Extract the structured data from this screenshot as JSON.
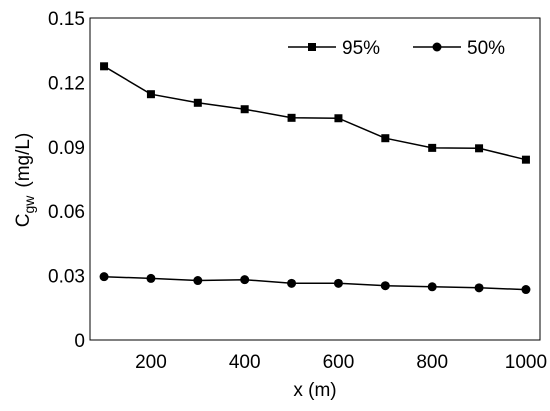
{
  "chart_data": {
    "type": "line",
    "xlabel": "x (m)",
    "ylabel": {
      "main": "C",
      "sub": "gw",
      "unit": "(mg/L)"
    },
    "xlim": [
      70,
      1030
    ],
    "ylim": [
      0,
      0.15
    ],
    "xticks": [
      200,
      400,
      600,
      800,
      1000
    ],
    "yticks": [
      0,
      0.03,
      0.06,
      0.09,
      0.12,
      0.15
    ],
    "ytick_labels": [
      "0",
      "0.03",
      "0.06",
      "0.09",
      "0.12",
      "0.15"
    ],
    "x": [
      100,
      200,
      300,
      400,
      500,
      600,
      700,
      800,
      900,
      1000
    ],
    "series": [
      {
        "name": "95%",
        "marker": "square",
        "values": [
          0.1275,
          0.1145,
          0.1105,
          0.1075,
          0.1035,
          0.1033,
          0.094,
          0.0895,
          0.0893,
          0.084
        ]
      },
      {
        "name": "50%",
        "marker": "circle",
        "values": [
          0.0295,
          0.0287,
          0.0277,
          0.0281,
          0.0264,
          0.0264,
          0.0253,
          0.0248,
          0.0243,
          0.0235
        ]
      }
    ],
    "grid": false,
    "legend_position": "top-right",
    "line_color": "#000000"
  }
}
